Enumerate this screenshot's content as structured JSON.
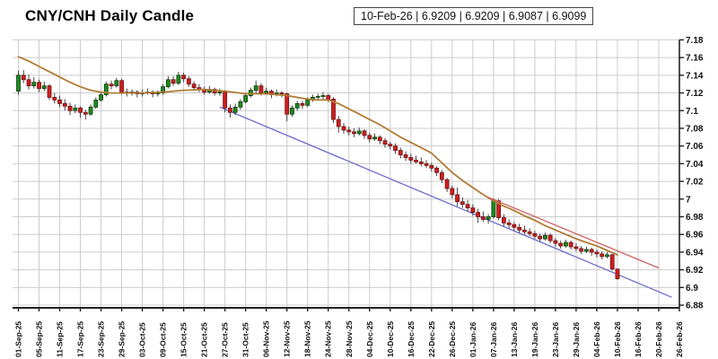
{
  "header": {
    "title": "CNY/CNH Daily Candle",
    "quote_display": "10-Feb-26 | 6.9209 | 6.9209 | 6.9087 | 6.9099"
  },
  "quote": {
    "date": "10-Feb-26",
    "open": 6.9209,
    "high": 6.9209,
    "low": 6.9087,
    "close": 6.9099
  },
  "chart_data": {
    "type": "candlestick",
    "title": "CNY/CNH Daily Candle",
    "grid": true,
    "legend": "none",
    "ylim": [
      6.877,
      7.1845
    ],
    "y_ticks": [
      7.18,
      7.16,
      7.14,
      7.12,
      7.1,
      7.08,
      7.06,
      7.04,
      7.02,
      7,
      6.98,
      6.96,
      6.94,
      6.92,
      6.9,
      6.88
    ],
    "y_tick_labels": [
      "7.18",
      "7.16",
      "7.14",
      "7.12",
      "7.1",
      "7.08",
      "7.06",
      "7.04",
      "7.02",
      "7",
      "6.98",
      "6.96",
      "6.94",
      "6.92",
      "6.9",
      "6.88"
    ],
    "x_labels": [
      "01-Sep-25",
      "05-Sep-25",
      "11-Sep-25",
      "17-Sep-25",
      "23-Sep-25",
      "29-Sep-25",
      "03-Oct-25",
      "09-Oct-25",
      "15-Oct-25",
      "21-Oct-25",
      "27-Oct-25",
      "31-Oct-25",
      "06-Nov-25",
      "12-Nov-25",
      "18-Nov-25",
      "24-Nov-25",
      "28-Nov-25",
      "04-Dec-25",
      "10-Dec-25",
      "16-Dec-25",
      "22-Dec-25",
      "26-Dec-25",
      "01-Jan-26",
      "07-Jan-26",
      "13-Jan-26",
      "19-Jan-26",
      "23-Jan-26",
      "29-Jan-26",
      "04-Feb-26",
      "10-Feb-26",
      "16-Feb-26",
      "20-Feb-26",
      "26-Feb-26"
    ],
    "x_label_step": 4,
    "x_index_count": 129,
    "candles": [
      [
        "01-Sep-25",
        7.122,
        7.145,
        7.118,
        7.14
      ],
      [
        "02-Sep-25",
        7.14,
        7.146,
        7.131,
        7.135
      ],
      [
        "03-Sep-25",
        7.135,
        7.141,
        7.124,
        7.128
      ],
      [
        "04-Sep-25",
        7.128,
        7.138,
        7.125,
        7.132
      ],
      [
        "05-Sep-25",
        7.132,
        7.135,
        7.121,
        7.125
      ],
      [
        "08-Sep-25",
        7.125,
        7.133,
        7.122,
        7.128
      ],
      [
        "09-Sep-25",
        7.128,
        7.13,
        7.112,
        7.115
      ],
      [
        "10-Sep-25",
        7.115,
        7.12,
        7.108,
        7.112
      ],
      [
        "11-Sep-25",
        7.112,
        7.117,
        7.104,
        7.108
      ],
      [
        "12-Sep-25",
        7.108,
        7.113,
        7.1,
        7.105
      ],
      [
        "15-Sep-25",
        7.105,
        7.109,
        7.095,
        7.1
      ],
      [
        "16-Sep-25",
        7.1,
        7.107,
        7.097,
        7.103
      ],
      [
        "17-Sep-25",
        7.103,
        7.105,
        7.092,
        7.098
      ],
      [
        "18-Sep-25",
        7.098,
        7.101,
        7.09,
        7.096
      ],
      [
        "19-Sep-25",
        7.096,
        7.107,
        7.094,
        7.104
      ],
      [
        "22-Sep-25",
        7.104,
        7.115,
        7.102,
        7.112
      ],
      [
        "23-Sep-25",
        7.112,
        7.121,
        7.11,
        7.118
      ],
      [
        "24-Sep-25",
        7.118,
        7.133,
        7.116,
        7.13
      ],
      [
        "25-Sep-25",
        7.13,
        7.134,
        7.124,
        7.128
      ],
      [
        "26-Sep-25",
        7.128,
        7.137,
        7.126,
        7.134
      ],
      [
        "29-Sep-25",
        7.134,
        7.136,
        7.118,
        7.121
      ],
      [
        "30-Sep-25",
        7.121,
        7.125,
        7.116,
        7.12
      ],
      [
        "01-Oct-25",
        7.12,
        7.124,
        7.117,
        7.121
      ],
      [
        "02-Oct-25",
        7.121,
        7.123,
        7.115,
        7.119
      ],
      [
        "03-Oct-25",
        7.119,
        7.124,
        7.116,
        7.12
      ],
      [
        "06-Oct-25",
        7.12,
        7.125,
        7.118,
        7.121
      ],
      [
        "07-Oct-25",
        7.121,
        7.123,
        7.115,
        7.119
      ],
      [
        "08-Oct-25",
        7.119,
        7.123,
        7.116,
        7.12
      ],
      [
        "09-Oct-25",
        7.12,
        7.13,
        7.118,
        7.127
      ],
      [
        "10-Oct-25",
        7.127,
        7.139,
        7.125,
        7.135
      ],
      [
        "13-Oct-25",
        7.135,
        7.139,
        7.128,
        7.131
      ],
      [
        "14-Oct-25",
        7.131,
        7.144,
        7.129,
        7.14
      ],
      [
        "15-Oct-25",
        7.14,
        7.143,
        7.132,
        7.136
      ],
      [
        "16-Oct-25",
        7.136,
        7.139,
        7.127,
        7.13
      ],
      [
        "17-Oct-25",
        7.13,
        7.133,
        7.123,
        7.126
      ],
      [
        "20-Oct-25",
        7.126,
        7.13,
        7.121,
        7.124
      ],
      [
        "21-Oct-25",
        7.124,
        7.127,
        7.118,
        7.121
      ],
      [
        "22-Oct-25",
        7.121,
        7.128,
        7.119,
        7.124
      ],
      [
        "23-Oct-25",
        7.124,
        7.126,
        7.117,
        7.12
      ],
      [
        "24-Oct-25",
        7.12,
        7.125,
        7.117,
        7.121
      ],
      [
        "27-Oct-25",
        7.121,
        7.123,
        7.098,
        7.103
      ],
      [
        "28-Oct-25",
        7.103,
        7.107,
        7.092,
        7.098
      ],
      [
        "29-Oct-25",
        7.098,
        7.108,
        7.095,
        7.104
      ],
      [
        "30-Oct-25",
        7.104,
        7.113,
        7.101,
        7.11
      ],
      [
        "31-Oct-25",
        7.11,
        7.12,
        7.108,
        7.117
      ],
      [
        "03-Nov-25",
        7.117,
        7.126,
        7.115,
        7.123
      ],
      [
        "04-Nov-25",
        7.123,
        7.134,
        7.12,
        7.128
      ],
      [
        "05-Nov-25",
        7.128,
        7.131,
        7.117,
        7.12
      ],
      [
        "06-Nov-25",
        7.12,
        7.126,
        7.118,
        7.122
      ],
      [
        "07-Nov-25",
        7.122,
        7.124,
        7.114,
        7.118
      ],
      [
        "10-Nov-25",
        7.118,
        7.124,
        7.116,
        7.12
      ],
      [
        "11-Nov-25",
        7.12,
        7.122,
        7.115,
        7.119
      ],
      [
        "12-Nov-25",
        7.119,
        7.12,
        7.088,
        7.096
      ],
      [
        "13-Nov-25",
        7.096,
        7.106,
        7.093,
        7.103
      ],
      [
        "14-Nov-25",
        7.103,
        7.111,
        7.1,
        7.108
      ],
      [
        "17-Nov-25",
        7.108,
        7.111,
        7.102,
        7.106
      ],
      [
        "18-Nov-25",
        7.106,
        7.115,
        7.104,
        7.112
      ],
      [
        "19-Nov-25",
        7.112,
        7.118,
        7.11,
        7.115
      ],
      [
        "20-Nov-25",
        7.115,
        7.119,
        7.112,
        7.116
      ],
      [
        "21-Nov-25",
        7.116,
        7.121,
        7.113,
        7.117
      ],
      [
        "24-Nov-25",
        7.117,
        7.119,
        7.11,
        7.113
      ],
      [
        "25-Nov-25",
        7.113,
        7.115,
        7.086,
        7.09
      ],
      [
        "26-Nov-25",
        7.09,
        7.094,
        7.075,
        7.082
      ],
      [
        "27-Nov-25",
        7.082,
        7.086,
        7.074,
        7.078
      ],
      [
        "28-Nov-25",
        7.078,
        7.082,
        7.072,
        7.076
      ],
      [
        "01-Dec-25",
        7.076,
        7.08,
        7.07,
        7.074
      ],
      [
        "02-Dec-25",
        7.074,
        7.081,
        7.072,
        7.077
      ],
      [
        "03-Dec-25",
        7.077,
        7.079,
        7.068,
        7.072
      ],
      [
        "04-Dec-25",
        7.072,
        7.075,
        7.064,
        7.068
      ],
      [
        "05-Dec-25",
        7.068,
        7.074,
        7.066,
        7.07
      ],
      [
        "08-Dec-25",
        7.07,
        7.072,
        7.062,
        7.066
      ],
      [
        "09-Dec-25",
        7.066,
        7.069,
        7.058,
        7.062
      ],
      [
        "10-Dec-25",
        7.062,
        7.065,
        7.056,
        7.06
      ],
      [
        "11-Dec-25",
        7.06,
        7.063,
        7.051,
        7.055
      ],
      [
        "12-Dec-25",
        7.055,
        7.058,
        7.046,
        7.05
      ],
      [
        "15-Dec-25",
        7.05,
        7.054,
        7.043,
        7.047
      ],
      [
        "16-Dec-25",
        7.047,
        7.051,
        7.04,
        7.044
      ],
      [
        "17-Dec-25",
        7.044,
        7.049,
        7.04,
        7.042
      ],
      [
        "18-Dec-25",
        7.042,
        7.047,
        7.037,
        7.04
      ],
      [
        "19-Dec-25",
        7.04,
        7.044,
        7.035,
        7.038
      ],
      [
        "22-Dec-25",
        7.038,
        7.041,
        7.031,
        7.035
      ],
      [
        "23-Dec-25",
        7.035,
        7.037,
        7.026,
        7.03
      ],
      [
        "24-Dec-25",
        7.03,
        7.033,
        7.018,
        7.022
      ],
      [
        "25-Dec-25",
        7.022,
        7.024,
        7.008,
        7.012
      ],
      [
        "26-Dec-25",
        7.012,
        7.015,
        7.001,
        7.005
      ],
      [
        "29-Dec-25",
        7.005,
        7.013,
        6.992,
        6.997
      ],
      [
        "30-Dec-25",
        6.997,
        7.002,
        6.99,
        6.994
      ],
      [
        "31-Dec-25",
        6.994,
        6.999,
        6.986,
        6.99
      ],
      [
        "01-Jan-26",
        6.99,
        6.994,
        6.981,
        6.985
      ],
      [
        "02-Jan-26",
        6.985,
        6.989,
        6.973,
        6.98
      ],
      [
        "05-Jan-26",
        6.98,
        6.986,
        6.974,
        6.977
      ],
      [
        "06-Jan-26",
        6.977,
        6.983,
        6.972,
        6.98
      ],
      [
        "07-Jan-26",
        6.98,
        7.001,
        6.978,
        6.998
      ],
      [
        "08-Jan-26",
        6.998,
        7.0,
        6.976,
        6.979
      ],
      [
        "09-Jan-26",
        6.979,
        6.983,
        6.969,
        6.973
      ],
      [
        "12-Jan-26",
        6.973,
        6.977,
        6.967,
        6.971
      ],
      [
        "13-Jan-26",
        6.971,
        6.974,
        6.964,
        6.968
      ],
      [
        "14-Jan-26",
        6.968,
        6.972,
        6.962,
        6.965
      ],
      [
        "15-Jan-26",
        6.965,
        6.97,
        6.96,
        6.963
      ],
      [
        "16-Jan-26",
        6.963,
        6.967,
        6.958,
        6.961
      ],
      [
        "19-Jan-26",
        6.961,
        6.964,
        6.955,
        6.958
      ],
      [
        "20-Jan-26",
        6.958,
        6.961,
        6.952,
        6.955
      ],
      [
        "21-Jan-26",
        6.955,
        6.962,
        6.953,
        6.959
      ],
      [
        "22-Jan-26",
        6.959,
        6.961,
        6.95,
        6.953
      ],
      [
        "23-Jan-26",
        6.953,
        6.956,
        6.946,
        6.95
      ],
      [
        "26-Jan-26",
        6.95,
        6.953,
        6.944,
        6.947
      ],
      [
        "27-Jan-26",
        6.947,
        6.954,
        6.945,
        6.951
      ],
      [
        "28-Jan-26",
        6.951,
        6.953,
        6.943,
        6.946
      ],
      [
        "29-Jan-26",
        6.946,
        6.95,
        6.941,
        6.944
      ],
      [
        "30-Jan-26",
        6.944,
        6.947,
        6.938,
        6.941
      ],
      [
        "02-Feb-26",
        6.941,
        6.946,
        6.939,
        6.943
      ],
      [
        "03-Feb-26",
        6.943,
        6.945,
        6.936,
        6.94
      ],
      [
        "04-Feb-26",
        6.94,
        6.943,
        6.934,
        6.938
      ],
      [
        "05-Feb-26",
        6.938,
        6.941,
        6.932,
        6.935
      ],
      [
        "06-Feb-26",
        6.935,
        6.94,
        6.933,
        6.937
      ],
      [
        "09-Feb-26",
        6.937,
        6.938,
        6.919,
        6.921
      ],
      [
        "10-Feb-26",
        6.9209,
        6.9209,
        6.9087,
        6.9099
      ]
    ],
    "overlays": {
      "moving_average": {
        "label": "moving-average-line",
        "color": "#b07c35",
        "points": [
          [
            0,
            7.161
          ],
          [
            2,
            7.156
          ],
          [
            4,
            7.15
          ],
          [
            6,
            7.144
          ],
          [
            8,
            7.138
          ],
          [
            10,
            7.132
          ],
          [
            12,
            7.127
          ],
          [
            14,
            7.123
          ],
          [
            16,
            7.121
          ],
          [
            18,
            7.12
          ],
          [
            20,
            7.12
          ],
          [
            24,
            7.12
          ],
          [
            28,
            7.121
          ],
          [
            32,
            7.123
          ],
          [
            36,
            7.124
          ],
          [
            40,
            7.122
          ],
          [
            44,
            7.119
          ],
          [
            48,
            7.119
          ],
          [
            52,
            7.117
          ],
          [
            54,
            7.115
          ],
          [
            56,
            7.113
          ],
          [
            58,
            7.112
          ],
          [
            60,
            7.112
          ],
          [
            62,
            7.108
          ],
          [
            64,
            7.102
          ],
          [
            66,
            7.096
          ],
          [
            68,
            7.09
          ],
          [
            70,
            7.084
          ],
          [
            72,
            7.077
          ],
          [
            74,
            7.07
          ],
          [
            76,
            7.064
          ],
          [
            78,
            7.058
          ],
          [
            80,
            7.052
          ],
          [
            82,
            7.041
          ],
          [
            84,
            7.03
          ],
          [
            86,
            7.021
          ],
          [
            88,
            7.013
          ],
          [
            90,
            7.005
          ],
          [
            92,
            6.998
          ],
          [
            94,
            6.992
          ],
          [
            96,
            6.987
          ],
          [
            98,
            6.981
          ],
          [
            100,
            6.976
          ],
          [
            102,
            6.97
          ],
          [
            104,
            6.965
          ],
          [
            106,
            6.96
          ],
          [
            108,
            6.955
          ],
          [
            110,
            6.951
          ],
          [
            112,
            6.947
          ],
          [
            114,
            6.942
          ],
          [
            116,
            6.937
          ]
        ]
      },
      "trendlines": [
        {
          "label": "lower-channel-trendline",
          "color": "#6b6bcf",
          "from": [
            39,
            7.104
          ],
          "to": [
            126.5,
            6.889
          ]
        },
        {
          "label": "upper-channel-trendline",
          "color": "#cd6060",
          "from": [
            91,
            7.002
          ],
          "to": [
            124,
            6.922
          ]
        }
      ]
    },
    "colors": {
      "up_fill": "#1e8a1e",
      "up_border": "#0d3d0d",
      "down_fill": "#cf1f1f",
      "down_border": "#701010",
      "wick": "#333333",
      "grid": "#cccccc",
      "axis": "#222222",
      "background": "#ffffff"
    }
  }
}
